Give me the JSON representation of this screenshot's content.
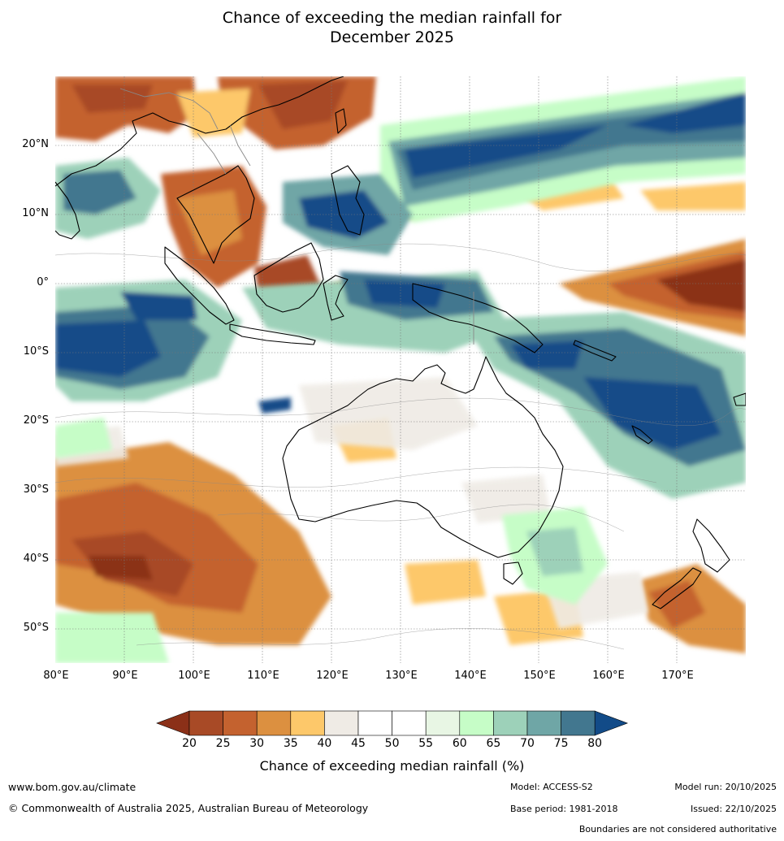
{
  "title_line1": "Chance of exceeding the median rainfall for",
  "title_line2": "December 2025",
  "latitude_labels": [
    "20°N",
    "10°N",
    "0°",
    "10°S",
    "20°S",
    "30°S",
    "40°S",
    "50°S"
  ],
  "longitude_labels": [
    "80°E",
    "90°E",
    "100°E",
    "110°E",
    "120°E",
    "130°E",
    "140°E",
    "150°E",
    "160°E",
    "170°E"
  ],
  "legend": {
    "title": "Chance of exceeding median rainfall (%)",
    "ticks": [
      "20",
      "25",
      "30",
      "35",
      "40",
      "45",
      "50",
      "55",
      "60",
      "65",
      "70",
      "75",
      "80"
    ],
    "colors": [
      "#8b3018",
      "#a84a26",
      "#c4622f",
      "#dc9040",
      "#fdc86a",
      "#efebe5",
      "#ffffff",
      "#ffffff",
      "#e8f6e4",
      "#c6fdc7",
      "#9dd1b9",
      "#6fa6a6",
      "#42778f",
      "#124b88"
    ]
  },
  "footer": {
    "website": "www.bom.gov.au/climate",
    "copyright": "© Commonwealth of Australia 2025, Australian Bureau of Meteorology",
    "model": "Model: ACCESS-S2",
    "base_period": "Base period: 1981-2018",
    "model_run": "Model run: 20/10/2025",
    "issued": "Issued: 22/10/2025",
    "disclaimer": "Boundaries are not considered authoritative"
  }
}
